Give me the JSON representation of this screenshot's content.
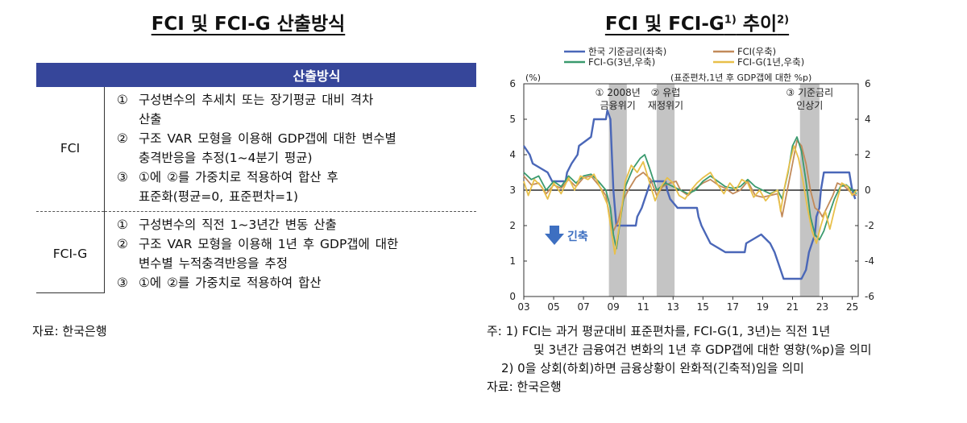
{
  "left": {
    "title": "FCI 및 FCI-G 산출방식",
    "table_header": "산출방식",
    "rows": [
      {
        "label": "FCI",
        "items": [
          {
            "num": "①",
            "lines": [
              "구성변수의 추세치 또는 장기평균 대비 격차",
              "산출"
            ]
          },
          {
            "num": "②",
            "lines": [
              "구조 VAR 모형을 이용해 GDP갭에 대한 변수별",
              "충격반응을 추정(1~4분기 평균)"
            ]
          },
          {
            "num": "③",
            "lines": [
              "①에 ②를 가중치로 적용하여 합산 후",
              "표준화(평균=0, 표준편차=1)"
            ]
          }
        ]
      },
      {
        "label": "FCI-G",
        "items": [
          {
            "num": "①",
            "lines": [
              "구성변수의 직전 1~3년간 변동 산출"
            ]
          },
          {
            "num": "②",
            "lines": [
              "구조 VAR 모형을 이용해 1년 후 GDP갭에 대한",
              "변수별 누적충격반응을 추정"
            ]
          },
          {
            "num": "③",
            "lines": [
              "①에 ②를 가중치로 적용하여 합산"
            ]
          }
        ]
      }
    ],
    "source": "자료: 한국은행"
  },
  "right": {
    "title_main": "FCI 및 FCI-G",
    "title_sup1": "1)",
    "title_mid": " 추이",
    "title_sup2": "2)",
    "notes": [
      "주: 1) FCI는 과거 평균대비 표준편차를, FCI-G(1, 3년)는 직전 1년",
      "및 3년간 금융여건 변화의 1년 후 GDP갭에 대한 영향(%p)을 의미",
      "2) 0을 상회(하회)하면 금융상황이 완화적(긴축적)임을 의미",
      "자료: 한국은행"
    ]
  },
  "chart_data": {
    "type": "line",
    "left_unit": "(%)",
    "right_unit": "(표준편차,1년 후 GDP갭에 대한 %p)",
    "left_axis": {
      "ylim": [
        0,
        6
      ],
      "ticks": [
        "0",
        "1",
        "2",
        "3",
        "4",
        "5",
        "6"
      ]
    },
    "right_axis": {
      "ylim": [
        -6,
        6
      ],
      "ticks": [
        "-6",
        "-4",
        "-2",
        "0",
        "2",
        "4",
        "6"
      ]
    },
    "x_axis": {
      "xlim": [
        2003,
        2025.4
      ],
      "ticks": [
        "03",
        "05",
        "07",
        "09",
        "11",
        "13",
        "15",
        "17",
        "19",
        "21",
        "23",
        "25"
      ],
      "tick_years": [
        2003,
        2005,
        2007,
        2009,
        2011,
        2013,
        2015,
        2017,
        2019,
        2021,
        2023,
        2025
      ]
    },
    "legend": [
      "한국 기준금리(좌축)",
      "FCI(우축)",
      "FCI-G(3년,우축)",
      "FCI-G(1년,우축)"
    ],
    "shaded_periods": [
      {
        "start": 2008.7,
        "end": 2009.9,
        "label_lines": [
          "① 2008년",
          "금융위기"
        ]
      },
      {
        "start": 2011.9,
        "end": 2013.1,
        "label_lines": [
          "② 유럽",
          "재정위기"
        ]
      },
      {
        "start": 2021.5,
        "end": 2022.8,
        "label_lines": [
          "③ 기준금리",
          "인상기"
        ]
      }
    ],
    "annotation": "긴축",
    "colors": {
      "policy_rate": "#4a67b8",
      "fci": "#c28a5a",
      "fcig3": "#3a9a6e",
      "fcig1": "#e8c04a",
      "shade": "#c4c4c4",
      "arrow": "#3d6fc1"
    },
    "series": [
      {
        "name": "한국 기준금리(좌축)",
        "axis": "left",
        "color": "#4a67b8",
        "points": [
          [
            2003.0,
            4.25
          ],
          [
            2003.4,
            4.0
          ],
          [
            2003.6,
            3.75
          ],
          [
            2004.6,
            3.5
          ],
          [
            2004.9,
            3.25
          ],
          [
            2005.8,
            3.25
          ],
          [
            2005.9,
            3.5
          ],
          [
            2006.2,
            3.75
          ],
          [
            2006.6,
            4.0
          ],
          [
            2006.7,
            4.25
          ],
          [
            2007.5,
            4.5
          ],
          [
            2007.7,
            5.0
          ],
          [
            2008.5,
            5.0
          ],
          [
            2008.6,
            5.25
          ],
          [
            2008.8,
            5.0
          ],
          [
            2008.9,
            4.0
          ],
          [
            2009.0,
            3.0
          ],
          [
            2009.1,
            2.5
          ],
          [
            2009.2,
            2.0
          ],
          [
            2010.5,
            2.0
          ],
          [
            2010.6,
            2.25
          ],
          [
            2010.9,
            2.5
          ],
          [
            2011.1,
            2.75
          ],
          [
            2011.3,
            3.0
          ],
          [
            2011.5,
            3.25
          ],
          [
            2012.5,
            3.25
          ],
          [
            2012.6,
            3.0
          ],
          [
            2012.8,
            2.75
          ],
          [
            2013.3,
            2.5
          ],
          [
            2014.6,
            2.5
          ],
          [
            2014.7,
            2.25
          ],
          [
            2014.9,
            2.0
          ],
          [
            2015.2,
            1.75
          ],
          [
            2015.5,
            1.5
          ],
          [
            2016.5,
            1.25
          ],
          [
            2017.8,
            1.25
          ],
          [
            2017.9,
            1.5
          ],
          [
            2018.9,
            1.75
          ],
          [
            2019.5,
            1.5
          ],
          [
            2019.8,
            1.25
          ],
          [
            2020.2,
            0.75
          ],
          [
            2020.4,
            0.5
          ],
          [
            2021.6,
            0.5
          ],
          [
            2021.9,
            0.75
          ],
          [
            2022.1,
            1.25
          ],
          [
            2022.3,
            1.5
          ],
          [
            2022.5,
            1.75
          ],
          [
            2022.6,
            2.25
          ],
          [
            2022.8,
            2.5
          ],
          [
            2022.9,
            3.0
          ],
          [
            2023.1,
            3.5
          ],
          [
            2024.8,
            3.5
          ],
          [
            2024.9,
            3.25
          ],
          [
            2025.0,
            3.0
          ],
          [
            2025.2,
            2.75
          ]
        ]
      },
      {
        "name": "FCI(우축)",
        "axis": "right",
        "color": "#c28a5a",
        "points": [
          [
            2003.0,
            0.8
          ],
          [
            2003.5,
            0.3
          ],
          [
            2004.0,
            0.4
          ],
          [
            2004.5,
            -0.2
          ],
          [
            2005.0,
            0.3
          ],
          [
            2005.5,
            0.1
          ],
          [
            2006.0,
            0.6
          ],
          [
            2006.5,
            0.2
          ],
          [
            2007.0,
            0.7
          ],
          [
            2007.5,
            0.8
          ],
          [
            2008.0,
            0.3
          ],
          [
            2008.5,
            -0.3
          ],
          [
            2008.8,
            -1.8
          ],
          [
            2009.0,
            -2.3
          ],
          [
            2009.3,
            -1.8
          ],
          [
            2009.7,
            -0.5
          ],
          [
            2010.0,
            0.0
          ],
          [
            2010.5,
            0.7
          ],
          [
            2011.0,
            1.0
          ],
          [
            2011.5,
            0.6
          ],
          [
            2011.9,
            -0.3
          ],
          [
            2012.3,
            0.2
          ],
          [
            2012.8,
            0.4
          ],
          [
            2013.2,
            0.5
          ],
          [
            2013.5,
            0.0
          ],
          [
            2014.0,
            -0.3
          ],
          [
            2014.5,
            0.1
          ],
          [
            2015.0,
            0.4
          ],
          [
            2015.5,
            0.6
          ],
          [
            2016.0,
            0.3
          ],
          [
            2016.5,
            0.1
          ],
          [
            2017.0,
            -0.2
          ],
          [
            2017.5,
            0.0
          ],
          [
            2018.0,
            0.5
          ],
          [
            2018.5,
            -0.3
          ],
          [
            2019.0,
            -0.4
          ],
          [
            2019.5,
            -0.3
          ],
          [
            2020.0,
            -0.2
          ],
          [
            2020.3,
            -1.5
          ],
          [
            2020.6,
            -0.2
          ],
          [
            2021.0,
            1.5
          ],
          [
            2021.3,
            2.8
          ],
          [
            2021.6,
            2.5
          ],
          [
            2021.9,
            1.5
          ],
          [
            2022.2,
            0.0
          ],
          [
            2022.5,
            -1.0
          ],
          [
            2022.8,
            -1.2
          ],
          [
            2023.0,
            -1.5
          ],
          [
            2023.3,
            -1.0
          ],
          [
            2023.7,
            -0.3
          ],
          [
            2024.0,
            0.4
          ],
          [
            2024.5,
            0.2
          ],
          [
            2025.0,
            -0.2
          ],
          [
            2025.3,
            -0.3
          ]
        ]
      },
      {
        "name": "FCI-G(3년,우축)",
        "axis": "right",
        "color": "#3a9a6e",
        "points": [
          [
            2003.0,
            1.0
          ],
          [
            2003.5,
            0.6
          ],
          [
            2004.0,
            0.8
          ],
          [
            2004.5,
            0.0
          ],
          [
            2005.0,
            0.5
          ],
          [
            2005.5,
            0.2
          ],
          [
            2006.0,
            0.8
          ],
          [
            2006.5,
            0.4
          ],
          [
            2007.0,
            0.8
          ],
          [
            2007.5,
            0.9
          ],
          [
            2008.0,
            0.5
          ],
          [
            2008.5,
            0.0
          ],
          [
            2008.8,
            -1.0
          ],
          [
            2009.0,
            -2.5
          ],
          [
            2009.2,
            -3.3
          ],
          [
            2009.5,
            -1.5
          ],
          [
            2009.8,
            0.2
          ],
          [
            2010.3,
            1.2
          ],
          [
            2010.8,
            1.8
          ],
          [
            2011.1,
            2.0
          ],
          [
            2011.4,
            1.3
          ],
          [
            2011.9,
            0.0
          ],
          [
            2012.5,
            0.4
          ],
          [
            2013.0,
            0.2
          ],
          [
            2013.5,
            0.0
          ],
          [
            2014.0,
            -0.2
          ],
          [
            2014.5,
            0.0
          ],
          [
            2015.0,
            0.5
          ],
          [
            2015.5,
            0.8
          ],
          [
            2016.0,
            0.5
          ],
          [
            2016.5,
            0.2
          ],
          [
            2017.0,
            0.1
          ],
          [
            2017.5,
            0.2
          ],
          [
            2018.0,
            0.6
          ],
          [
            2018.5,
            0.2
          ],
          [
            2019.0,
            0.0
          ],
          [
            2019.5,
            -0.2
          ],
          [
            2020.0,
            0.0
          ],
          [
            2020.3,
            -0.5
          ],
          [
            2020.7,
            1.0
          ],
          [
            2021.0,
            2.5
          ],
          [
            2021.3,
            3.0
          ],
          [
            2021.6,
            2.2
          ],
          [
            2021.9,
            0.5
          ],
          [
            2022.2,
            -1.5
          ],
          [
            2022.5,
            -2.5
          ],
          [
            2022.8,
            -2.8
          ],
          [
            2023.1,
            -2.3
          ],
          [
            2023.4,
            -1.5
          ],
          [
            2023.8,
            -0.5
          ],
          [
            2024.2,
            0.2
          ],
          [
            2024.6,
            0.3
          ],
          [
            2025.0,
            0.0
          ],
          [
            2025.3,
            -0.2
          ]
        ]
      },
      {
        "name": "FCI-G(1년,우축)",
        "axis": "right",
        "color": "#e8c04a",
        "points": [
          [
            2003.0,
            0.5
          ],
          [
            2003.3,
            -0.3
          ],
          [
            2003.7,
            0.6
          ],
          [
            2004.2,
            0.2
          ],
          [
            2004.6,
            -0.5
          ],
          [
            2005.0,
            0.4
          ],
          [
            2005.5,
            -0.2
          ],
          [
            2006.0,
            0.7
          ],
          [
            2006.4,
            0.0
          ],
          [
            2006.8,
            0.8
          ],
          [
            2007.3,
            0.6
          ],
          [
            2007.7,
            0.9
          ],
          [
            2008.2,
            0.0
          ],
          [
            2008.6,
            -0.8
          ],
          [
            2008.9,
            -2.5
          ],
          [
            2009.1,
            -3.6
          ],
          [
            2009.4,
            -2.0
          ],
          [
            2009.8,
            0.5
          ],
          [
            2010.2,
            1.4
          ],
          [
            2010.6,
            1.0
          ],
          [
            2011.0,
            1.6
          ],
          [
            2011.4,
            0.5
          ],
          [
            2011.8,
            -0.6
          ],
          [
            2012.2,
            0.2
          ],
          [
            2012.6,
            0.7
          ],
          [
            2013.0,
            0.4
          ],
          [
            2013.4,
            -0.3
          ],
          [
            2013.8,
            -0.5
          ],
          [
            2014.2,
            0.0
          ],
          [
            2014.6,
            0.4
          ],
          [
            2015.0,
            0.7
          ],
          [
            2015.5,
            1.0
          ],
          [
            2016.0,
            0.3
          ],
          [
            2016.4,
            -0.2
          ],
          [
            2016.8,
            0.4
          ],
          [
            2017.2,
            0.0
          ],
          [
            2017.6,
            0.6
          ],
          [
            2018.0,
            0.4
          ],
          [
            2018.4,
            -0.4
          ],
          [
            2018.8,
            0.0
          ],
          [
            2019.2,
            -0.6
          ],
          [
            2019.6,
            -0.2
          ],
          [
            2020.0,
            0.0
          ],
          [
            2020.2,
            -1.2
          ],
          [
            2020.5,
            0.3
          ],
          [
            2020.8,
            1.5
          ],
          [
            2021.1,
            2.5
          ],
          [
            2021.4,
            1.8
          ],
          [
            2021.7,
            0.5
          ],
          [
            2022.0,
            -1.0
          ],
          [
            2022.3,
            -2.3
          ],
          [
            2022.6,
            -3.0
          ],
          [
            2022.9,
            -2.0
          ],
          [
            2023.2,
            -1.2
          ],
          [
            2023.5,
            -2.2
          ],
          [
            2023.9,
            -0.8
          ],
          [
            2024.3,
            0.4
          ],
          [
            2024.7,
            0.2
          ],
          [
            2025.0,
            -0.3
          ],
          [
            2025.3,
            0.0
          ]
        ]
      }
    ]
  }
}
